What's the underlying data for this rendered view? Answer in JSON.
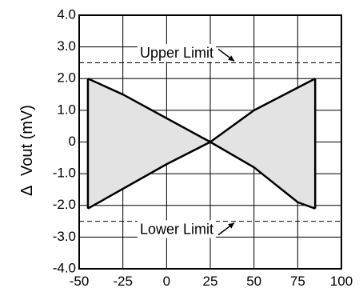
{
  "chart_data": {
    "type": "area",
    "x_ticks": [
      "-50",
      "-25",
      "0",
      "25",
      "50",
      "75",
      "100"
    ],
    "y_ticks": [
      "4.0",
      "3.0",
      "2.0",
      "1.0",
      "0",
      "-1.0",
      "-2.0",
      "-3.0",
      "-4.0"
    ],
    "xlim": [
      -50,
      100
    ],
    "ylim": [
      -4.0,
      4.0
    ],
    "grid": true,
    "ylabel_symbol": "Δ",
    "ylabel": "Vout  (mV)",
    "series": [
      {
        "role": "upper-boundary",
        "x": [
          -45,
          -25,
          25,
          50,
          85
        ],
        "y": [
          2.0,
          1.5,
          0.0,
          1.0,
          2.0
        ]
      },
      {
        "role": "lower-boundary",
        "x": [
          -45,
          0,
          25,
          50,
          75,
          85
        ],
        "y": [
          -2.1,
          -0.7,
          0.0,
          -0.8,
          -1.9,
          -2.1
        ]
      }
    ],
    "limits": [
      {
        "label": "Upper  Limit",
        "value": 2.5
      },
      {
        "label": "Lower  Limit",
        "value": -2.5
      }
    ],
    "colors": {
      "fill": "#e3e3e3",
      "line": "#000000",
      "grid": "#000000"
    }
  }
}
